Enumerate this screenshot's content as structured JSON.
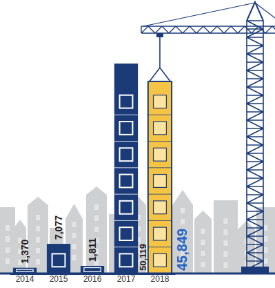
{
  "chart_data": {
    "type": "bar",
    "categories": [
      "2014",
      "2015",
      "2016",
      "2017",
      "2018"
    ],
    "values": [
      1370,
      7077,
      1811,
      50119,
      45849
    ],
    "value_labels": [
      "1,370",
      "7,077",
      "1,811",
      "50,119",
      "45,849"
    ],
    "colors": [
      "#1b3b78",
      "#1b3b78",
      "#1b3b78",
      "#1b3b78",
      "#f6c445"
    ],
    "data_labels": true,
    "tick_labels": "x"
  }
}
